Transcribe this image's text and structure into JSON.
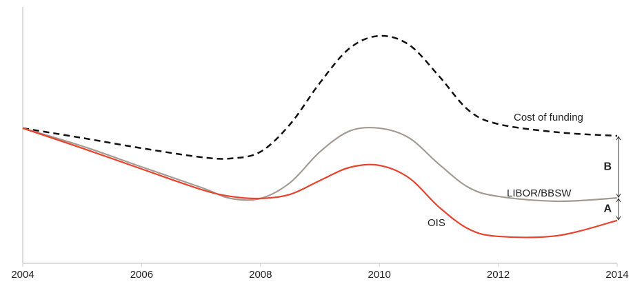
{
  "chart_data": {
    "type": "line",
    "x": [
      2004,
      2005,
      2006,
      2007,
      2007.5,
      2008,
      2008.5,
      2009,
      2009.5,
      2010,
      2010.5,
      2011,
      2011.5,
      2012,
      2013,
      2014
    ],
    "series": [
      {
        "name": "Cost of funding",
        "color": "#111111",
        "dashed": true,
        "values": [
          52.7,
          48.9,
          44.9,
          41.4,
          40.9,
          43.5,
          54.3,
          70.4,
          83.9,
          88.7,
          85.2,
          73.1,
          59.7,
          54.3,
          51.1,
          49.7
        ]
      },
      {
        "name": "LIBOR/BBSW",
        "color": "#a39a92",
        "dashed": false,
        "values": [
          52.7,
          45.7,
          37.6,
          29.6,
          25.3,
          25.3,
          31.5,
          43.5,
          51.6,
          52.7,
          48.9,
          38.7,
          29.6,
          26.1,
          24.2,
          25.5
        ]
      },
      {
        "name": "OIS",
        "color": "#e8412c",
        "dashed": false,
        "values": [
          52.7,
          44.9,
          36.8,
          28.8,
          26.1,
          25.3,
          26.9,
          32.3,
          37.4,
          38.2,
          33.3,
          22.0,
          13.4,
          10.5,
          10.8,
          16.7
        ]
      }
    ],
    "annotations": [
      "B",
      "A"
    ],
    "xlim": [
      2004,
      2014
    ],
    "xticks": [
      2004,
      2006,
      2008,
      2010,
      2012,
      2014
    ],
    "ylim": [
      0,
      100
    ]
  }
}
